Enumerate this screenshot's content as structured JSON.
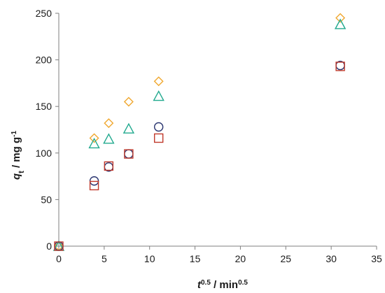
{
  "chart_data": {
    "type": "scatter",
    "title": "",
    "xlabel": {
      "italic_symbol": "t",
      "superscript": "0.5",
      "separator": " / ",
      "unit": "min",
      "unit_superscript": "0.5"
    },
    "ylabel": {
      "italic_symbol": "q",
      "subscript": "t",
      "separator": " / ",
      "unit": "mg g",
      "unit_superscript": "-1"
    },
    "xlim": [
      0,
      35
    ],
    "ylim": [
      0,
      250
    ],
    "xticks": [
      0,
      5,
      10,
      15,
      20,
      25,
      30,
      35
    ],
    "yticks": [
      0,
      50,
      100,
      150,
      200,
      250
    ],
    "grid": false,
    "legend": "none",
    "series": [
      {
        "marker": "diamond",
        "color": "#F0A830",
        "points": [
          [
            0,
            0
          ],
          [
            3.9,
            116
          ],
          [
            5.5,
            132
          ],
          [
            7.7,
            155
          ],
          [
            11.0,
            177
          ],
          [
            31.0,
            245
          ]
        ]
      },
      {
        "marker": "triangle",
        "color": "#21A98E",
        "points": [
          [
            0,
            0
          ],
          [
            3.9,
            110
          ],
          [
            5.5,
            115
          ],
          [
            7.7,
            126
          ],
          [
            11.0,
            161
          ],
          [
            31.0,
            238
          ]
        ]
      },
      {
        "marker": "circle",
        "color": "#2A3570",
        "points": [
          [
            0,
            0
          ],
          [
            3.9,
            70
          ],
          [
            5.5,
            85
          ],
          [
            7.7,
            99
          ],
          [
            11.0,
            128
          ],
          [
            31.0,
            194
          ]
        ]
      },
      {
        "marker": "square",
        "color": "#C0392B",
        "points": [
          [
            0,
            0
          ],
          [
            3.9,
            65
          ],
          [
            5.5,
            86
          ],
          [
            7.7,
            99
          ],
          [
            11.0,
            116
          ],
          [
            31.0,
            193
          ]
        ]
      }
    ]
  }
}
